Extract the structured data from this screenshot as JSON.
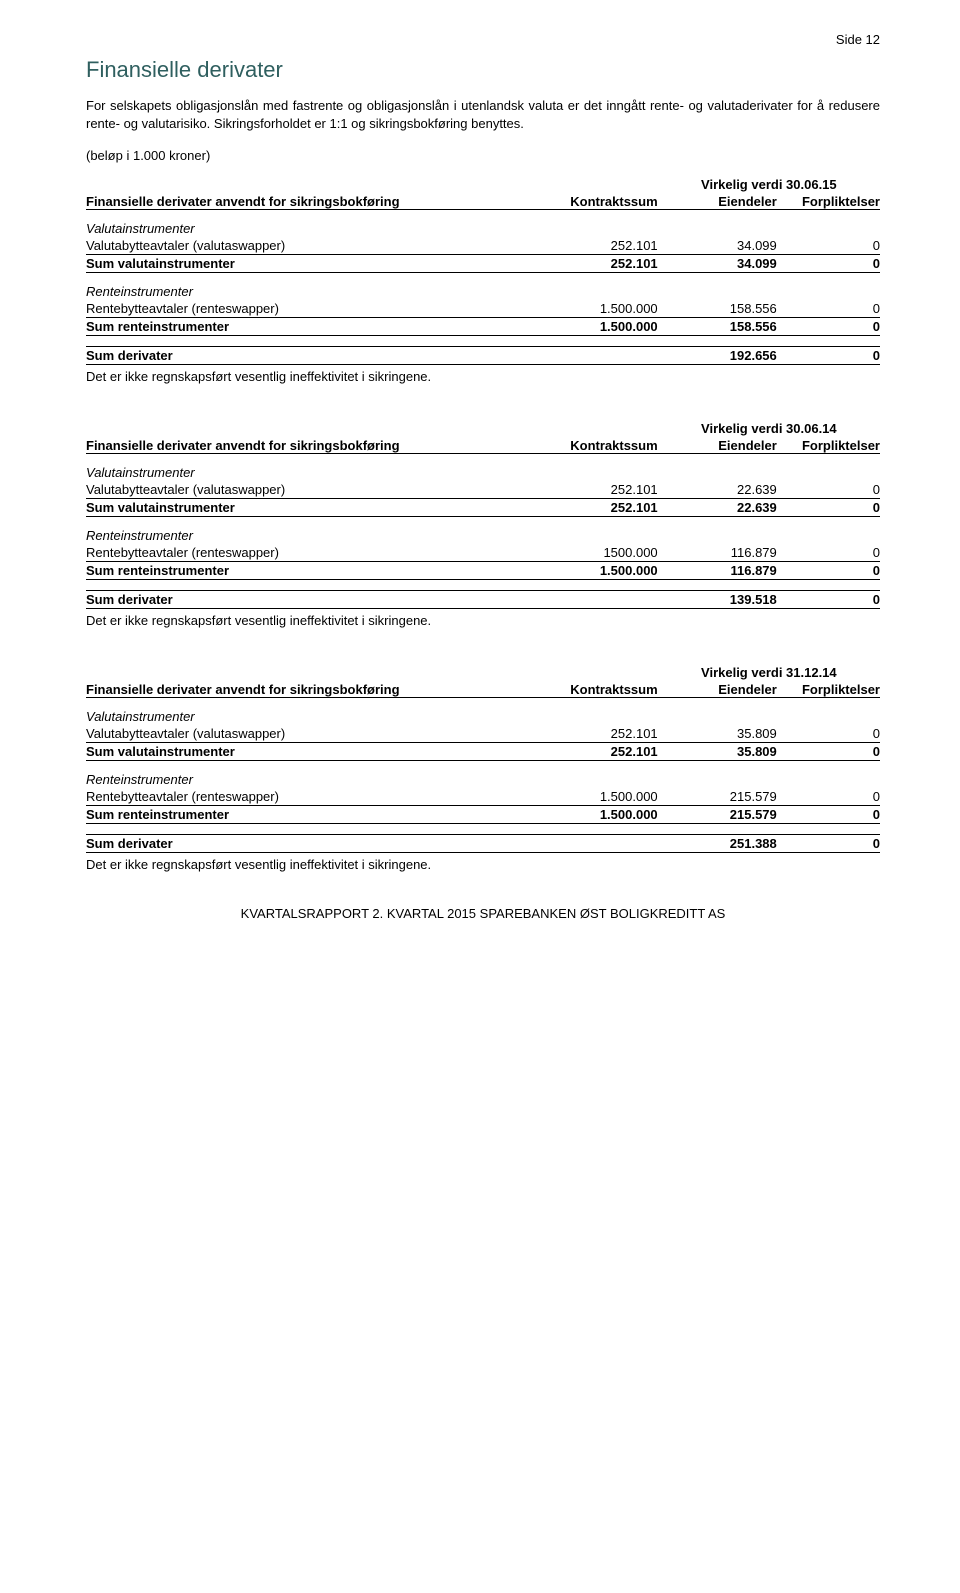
{
  "pageLabel": "Side  12",
  "title": "Finansielle derivater",
  "intro": "For selskapets obligasjonslån med fastrente og obligasjonslån i utenlandsk valuta er det inngått rente- og valutaderivater for å redusere rente- og valutarisiko. Sikringsforholdet er 1:1 og sikringsbokføring benyttes.",
  "amountsNote": "(beløp i 1.000 kroner)",
  "headers": {
    "mainLabel": "Finansielle derivater anvendt for sikringsbokføring",
    "kontraktssum": "Kontraktssum",
    "eiendeler": "Eiendeler",
    "forpliktelser": "Forpliktelser"
  },
  "sections": [
    {
      "virkelig": "Virkelig verdi 30.06.15",
      "valutaLabel": "Valutainstrumenter",
      "valutaRows": [
        {
          "label": "Valutabytteavtaler (valutaswapper)",
          "k": "252.101",
          "e": "34.099",
          "f": "0"
        }
      ],
      "valutaSum": {
        "label": "Sum valutainstrumenter",
        "k": "252.101",
        "e": "34.099",
        "f": "0"
      },
      "renteLabel": "Renteinstrumenter",
      "renteRows": [
        {
          "label": "Rentebytteavtaler (renteswapper)",
          "k": "1.500.000",
          "e": "158.556",
          "f": "0"
        }
      ],
      "renteSum": {
        "label": "Sum renteinstrumenter",
        "k": "1.500.000",
        "e": "158.556",
        "f": "0"
      },
      "sumDeriv": {
        "label": "Sum derivater",
        "e": "192.656",
        "f": "0"
      },
      "note": "Det er ikke regnskapsført vesentlig ineffektivitet i sikringene."
    },
    {
      "virkelig": "Virkelig verdi 30.06.14",
      "valutaLabel": "Valutainstrumenter",
      "valutaRows": [
        {
          "label": "Valutabytteavtaler (valutaswapper)",
          "k": "252.101",
          "e": "22.639",
          "f": "0"
        }
      ],
      "valutaSum": {
        "label": "Sum valutainstrumenter",
        "k": "252.101",
        "e": "22.639",
        "f": "0"
      },
      "renteLabel": "Renteinstrumenter",
      "renteRows": [
        {
          "label": "Rentebytteavtaler (renteswapper)",
          "k": "1500.000",
          "e": "116.879",
          "f": "0"
        }
      ],
      "renteSum": {
        "label": "Sum renteinstrumenter",
        "k": "1.500.000",
        "e": "116.879",
        "f": "0"
      },
      "sumDeriv": {
        "label": "Sum derivater",
        "e": "139.518",
        "f": "0"
      },
      "note": "Det er ikke regnskapsført vesentlig ineffektivitet i sikringene."
    },
    {
      "virkelig": "Virkelig verdi 31.12.14",
      "valutaLabel": "Valutainstrumenter",
      "valutaRows": [
        {
          "label": "Valutabytteavtaler (valutaswapper)",
          "k": "252.101",
          "e": "35.809",
          "f": "0"
        }
      ],
      "valutaSum": {
        "label": "Sum valutainstrumenter",
        "k": "252.101",
        "e": "35.809",
        "f": "0"
      },
      "renteLabel": "Renteinstrumenter",
      "renteRows": [
        {
          "label": "Rentebytteavtaler (renteswapper)",
          "k": "1.500.000",
          "e": "215.579",
          "f": "0"
        }
      ],
      "renteSum": {
        "label": "Sum renteinstrumenter",
        "k": "1.500.000",
        "e": "215.579",
        "f": "0"
      },
      "sumDeriv": {
        "label": "Sum derivater",
        "e": "251.388",
        "f": "0"
      },
      "note": "Det er ikke regnskapsført vesentlig ineffektivitet i sikringene."
    }
  ],
  "footer": {
    "left1": "K",
    "rest1": "VARTALSRAPPORT ",
    "left2": "2. ",
    "rest2": "KVARTAL",
    "mid": " 2015 S",
    "rest3": "PAREBANKEN ",
    "o": "Ø",
    "rest4": "ST ",
    "b": "B",
    "rest5": "OLIGKREDITT ",
    "as": "AS"
  }
}
